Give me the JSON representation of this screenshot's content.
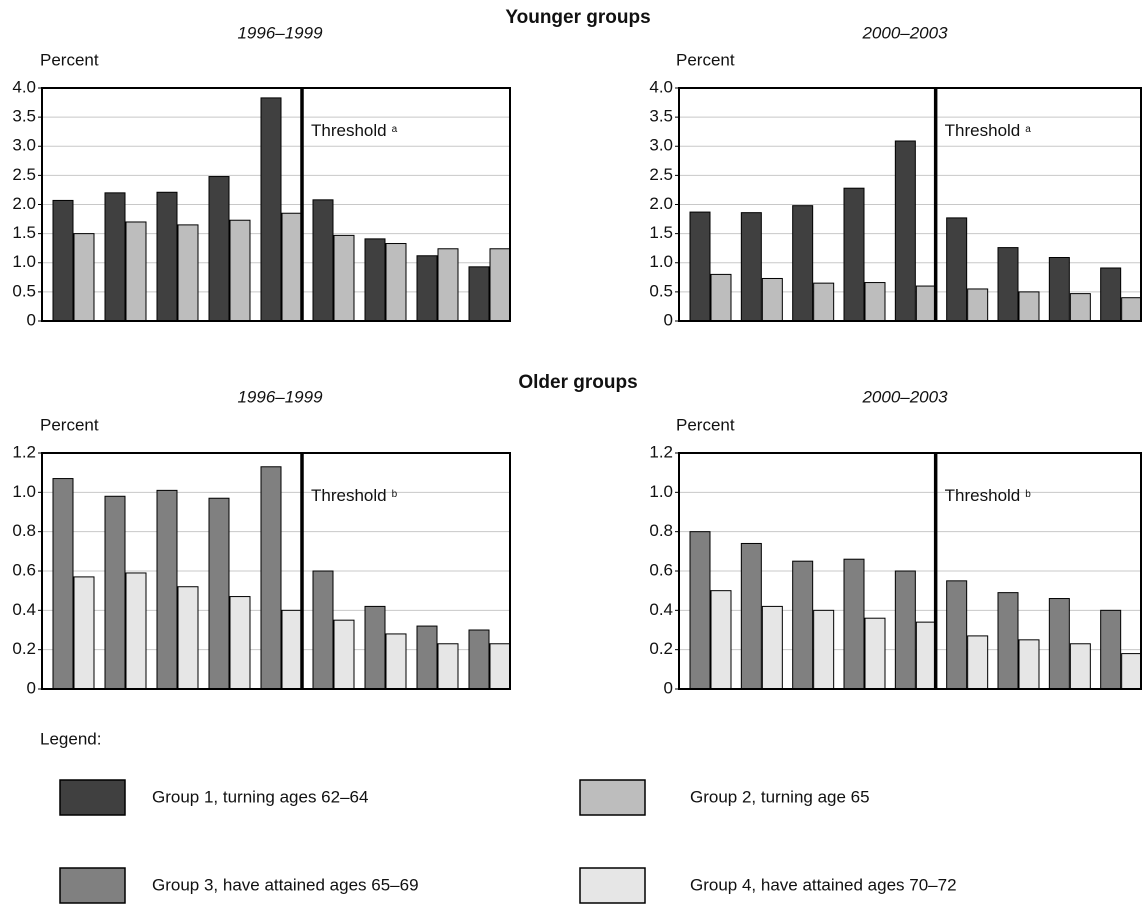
{
  "section_titles": [
    "Younger groups",
    "Older groups"
  ],
  "legend_title": "Legend:",
  "chart_data": [
    {
      "type": "bar",
      "title": "1996–1999",
      "ylabel": "Percent",
      "annotation": "Threshold",
      "annotation_mark": "a",
      "categories": [
        null,
        null,
        null,
        null,
        null,
        null,
        null,
        null,
        null
      ],
      "series": [
        {
          "name": "Group 1, turning ages 62–64",
          "color": "#404040",
          "values": [
            2.07,
            2.2,
            2.21,
            2.48,
            3.83,
            2.08,
            1.41,
            1.12,
            0.93
          ]
        },
        {
          "name": "Group 2, turning age 65",
          "color": "#bdbdbd",
          "values": [
            1.5,
            1.7,
            1.65,
            1.73,
            1.85,
            1.47,
            1.33,
            1.24,
            1.24
          ]
        }
      ],
      "ylim": [
        0,
        4
      ],
      "yticks": [
        0,
        0.5,
        {
          "value": 1,
          "label": "1.0"
        },
        1.5,
        {
          "value": 2,
          "label": "2.0"
        },
        2.5,
        {
          "value": 3,
          "label": "3.0"
        },
        3.5,
        {
          "value": 4,
          "label": "4.0"
        }
      ],
      "grid": true
    },
    {
      "type": "bar",
      "title": "2000–2003",
      "ylabel": "Percent",
      "annotation": "Threshold",
      "annotation_mark": "a",
      "categories": [
        null,
        null,
        null,
        null,
        null,
        null,
        null,
        null,
        null
      ],
      "series": [
        {
          "name": "Group 1, turning ages 62–64",
          "color": "#404040",
          "values": [
            1.87,
            1.86,
            1.98,
            2.28,
            3.09,
            1.77,
            1.26,
            1.09,
            0.91
          ]
        },
        {
          "name": "Group 2, turning age 65",
          "color": "#bdbdbd",
          "values": [
            0.8,
            0.73,
            0.65,
            0.66,
            0.6,
            0.55,
            0.5,
            0.47,
            0.4
          ]
        }
      ],
      "ylim": [
        0,
        4
      ],
      "yticks": [
        0,
        0.5,
        {
          "value": 1,
          "label": "1.0"
        },
        1.5,
        {
          "value": 2,
          "label": "2.0"
        },
        2.5,
        {
          "value": 3,
          "label": "3.0"
        },
        3.5,
        {
          "value": 4,
          "label": "4.0"
        }
      ],
      "grid": true
    },
    {
      "type": "bar",
      "title": "1996–1999",
      "ylabel": "Percent",
      "annotation": "Threshold",
      "annotation_mark": "b",
      "categories": [
        null,
        null,
        null,
        null,
        null,
        null,
        null,
        null,
        null
      ],
      "series": [
        {
          "name": "Group 3, have attained ages 65–69",
          "color": "#808080",
          "values": [
            1.07,
            0.98,
            1.01,
            0.97,
            1.13,
            0.6,
            0.42,
            0.32,
            0.3
          ]
        },
        {
          "name": "Group 4, have attained ages 70–72",
          "color": "#e6e6e6",
          "values": [
            0.57,
            0.59,
            0.52,
            0.47,
            0.4,
            0.35,
            0.28,
            0.23,
            0.23
          ]
        }
      ],
      "ylim": [
        0,
        1.2
      ],
      "yticks": [
        0,
        0.2,
        0.4,
        0.6,
        0.8,
        {
          "value": 1,
          "label": "1.0"
        },
        1.2
      ],
      "grid": true
    },
    {
      "type": "bar",
      "title": "2000–2003",
      "ylabel": "Percent",
      "annotation": "Threshold",
      "annotation_mark": "b",
      "categories": [
        null,
        null,
        null,
        null,
        null,
        null,
        null,
        null,
        null
      ],
      "series": [
        {
          "name": "Group 3, have attained ages 65–69",
          "color": "#808080",
          "values": [
            0.8,
            0.74,
            0.65,
            0.66,
            0.6,
            0.55,
            0.49,
            0.46,
            0.4
          ]
        },
        {
          "name": "Group 4, have attained ages 70–72",
          "color": "#e6e6e6",
          "values": [
            0.5,
            0.42,
            0.4,
            0.36,
            0.34,
            0.27,
            0.25,
            0.23,
            0.18
          ]
        }
      ],
      "ylim": [
        0,
        1.2
      ],
      "yticks": [
        0,
        0.2,
        0.4,
        0.6,
        0.8,
        {
          "value": 1,
          "label": "1.0"
        },
        1.2
      ],
      "grid": true
    }
  ]
}
